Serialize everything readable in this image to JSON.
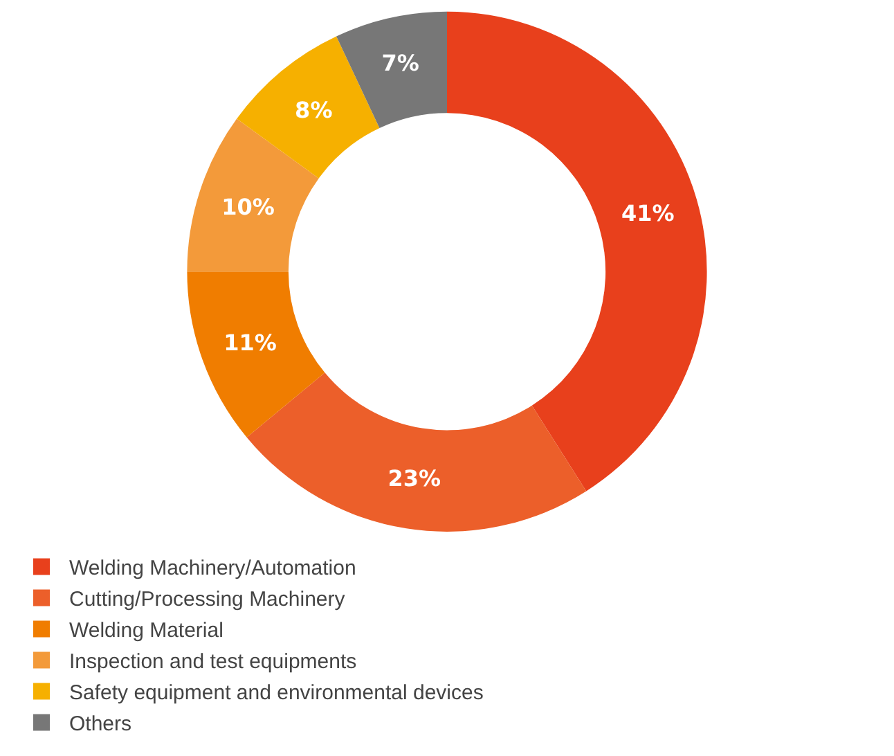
{
  "chart_data": {
    "type": "donut",
    "categories": [
      "Welding Machinery/Automation",
      "Cutting/Processing Machinery",
      "Welding Material",
      "Inspection and test equipments",
      "Safety equipment and environmental devices",
      "Others"
    ],
    "values": [
      41,
      23,
      11,
      10,
      8,
      7
    ],
    "colors": [
      "#e8401c",
      "#ec5f2a",
      "#f07d00",
      "#f39a3a",
      "#f6b000",
      "#777777"
    ],
    "value_labels": [
      "41%",
      "23%",
      "11%",
      "10%",
      "8%",
      "7%"
    ],
    "legend": "bottom"
  }
}
